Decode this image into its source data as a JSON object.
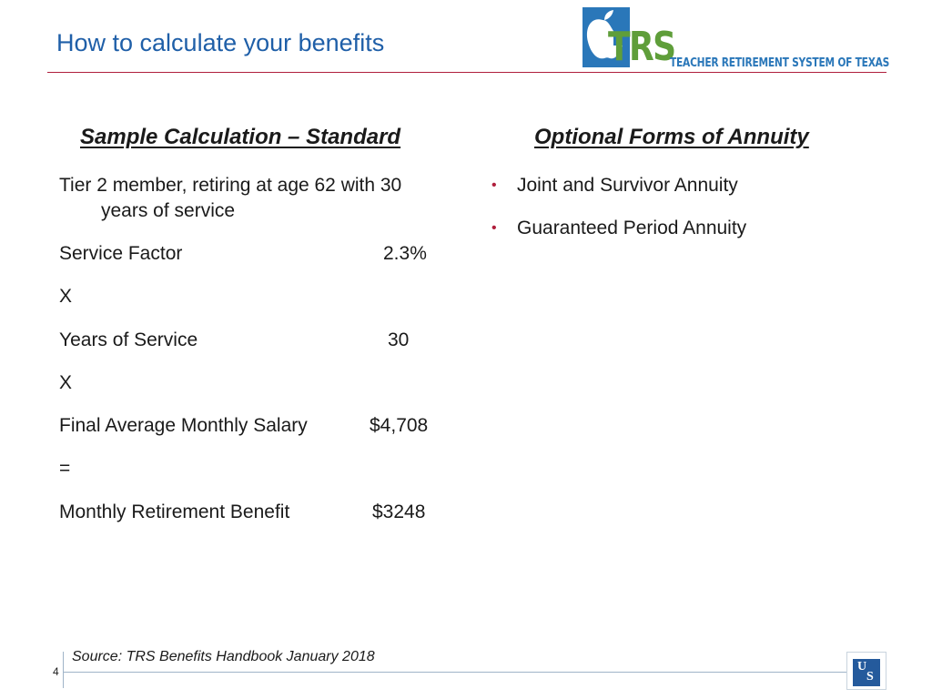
{
  "header": {
    "title": "How to calculate your benefits",
    "logo": {
      "acronym": "TRS",
      "full_name": "TEACHER RETIREMENT SYSTEM OF TEXAS",
      "icon": "apple-icon",
      "colors": {
        "blue": "#2a77b9",
        "green": "#5f9e3a"
      }
    }
  },
  "left": {
    "heading": "Sample Calculation – Standard",
    "intro_line1": "Tier 2 member, retiring at age 62 with 30",
    "intro_line2": "years of service",
    "rows": [
      {
        "label": "Service Factor",
        "value": "2.3%"
      },
      {
        "label": "X",
        "value": ""
      },
      {
        "label": "Years of Service",
        "value": "30"
      },
      {
        "label": "X",
        "value": ""
      },
      {
        "label": "Final Average Monthly Salary",
        "value": "$4,708"
      },
      {
        "label": "=",
        "value": ""
      },
      {
        "label": "Monthly Retirement Benefit",
        "value": "$3248"
      }
    ]
  },
  "right": {
    "heading": "Optional Forms of Annuity",
    "bullets": [
      "Joint and Survivor Annuity",
      "Guaranteed Period Annuity"
    ]
  },
  "footer": {
    "source": "Source: TRS Benefits Handbook January 2018",
    "page_number": "4",
    "logo_letters": [
      "U",
      "S"
    ]
  },
  "colors": {
    "title": "#1f5fa8",
    "rule": "#b01e3c",
    "bullet": "#b01e3c"
  }
}
